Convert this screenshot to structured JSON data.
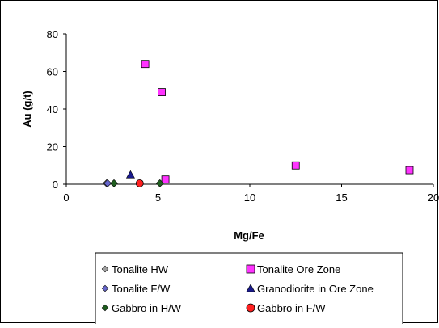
{
  "chart_data": {
    "type": "scatter",
    "title": "",
    "xlabel": "Mg/Fe",
    "ylabel": "Au (g/t)",
    "xlim": [
      0,
      20
    ],
    "ylim": [
      0,
      80
    ],
    "xticks": [
      "0",
      "5",
      "10",
      "15",
      "20"
    ],
    "yticks": [
      "0",
      "20",
      "40",
      "60",
      "80"
    ],
    "grid": false,
    "legend_position": "bottom",
    "series": [
      {
        "name": "Tonalite HW",
        "marker": "diamond",
        "color": "#a0a0a0",
        "points": [
          [
            2.2,
            0.5
          ]
        ]
      },
      {
        "name": "Tonalite Ore Zone",
        "marker": "square",
        "color": "#ff33ff",
        "points": [
          [
            4.3,
            64
          ],
          [
            5.2,
            49
          ],
          [
            5.4,
            2.5
          ],
          [
            12.5,
            10
          ],
          [
            18.7,
            7.5
          ]
        ]
      },
      {
        "name": "Tonalite F/W",
        "marker": "diamond",
        "color": "#6666cc",
        "points": [
          [
            2.25,
            0.5
          ]
        ]
      },
      {
        "name": "Granodiorite in Ore Zone",
        "marker": "triangle",
        "color": "#1a1a8c",
        "points": [
          [
            3.5,
            5
          ]
        ]
      },
      {
        "name": "Gabbro in H/W",
        "marker": "diamond",
        "color": "#1f5e1f",
        "points": [
          [
            2.6,
            0.5
          ],
          [
            5.1,
            0.5
          ]
        ]
      },
      {
        "name": "Gabbro in F/W",
        "marker": "circle",
        "color": "#ff2020",
        "points": [
          [
            4.0,
            0.5
          ]
        ]
      }
    ]
  }
}
